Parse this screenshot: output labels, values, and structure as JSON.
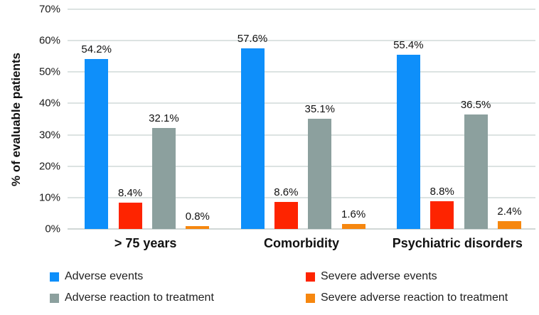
{
  "chart_data": {
    "type": "bar",
    "title": "",
    "xlabel": "",
    "ylabel": "% of evaluable patients",
    "ylim": [
      0,
      70
    ],
    "yticks": [
      "0%",
      "10%",
      "20%",
      "30%",
      "40%",
      "50%",
      "60%",
      "70%"
    ],
    "grid": true,
    "legend_position": "bottom",
    "categories": [
      "> 75 years",
      "Comorbidity",
      "Psychiatric disorders"
    ],
    "series": [
      {
        "name": "Adverse events",
        "color": "#0e8ffa",
        "values": [
          54.2,
          57.6,
          55.4
        ],
        "labels": [
          "54.2%",
          "57.6%",
          "55.4%"
        ]
      },
      {
        "name": "Severe adverse events",
        "color": "#fe2400",
        "values": [
          8.4,
          8.6,
          8.8
        ],
        "labels": [
          "8.4%",
          "8.6%",
          "8.8%"
        ]
      },
      {
        "name": "Adverse reaction to treatment",
        "color": "#8ca09e",
        "values": [
          32.1,
          35.1,
          36.5
        ],
        "labels": [
          "32.1%",
          "35.1%",
          "36.5%"
        ]
      },
      {
        "name": "Severe adverse reaction to treatment",
        "color": "#f6870f",
        "values": [
          0.8,
          1.6,
          2.4
        ],
        "labels": [
          "0.8%",
          "1.6%",
          "2.4%"
        ]
      }
    ],
    "colors": {
      "gridline": "#dce3e2",
      "axis_line": "#d0d7d6",
      "text": "#1a1a1a"
    }
  }
}
